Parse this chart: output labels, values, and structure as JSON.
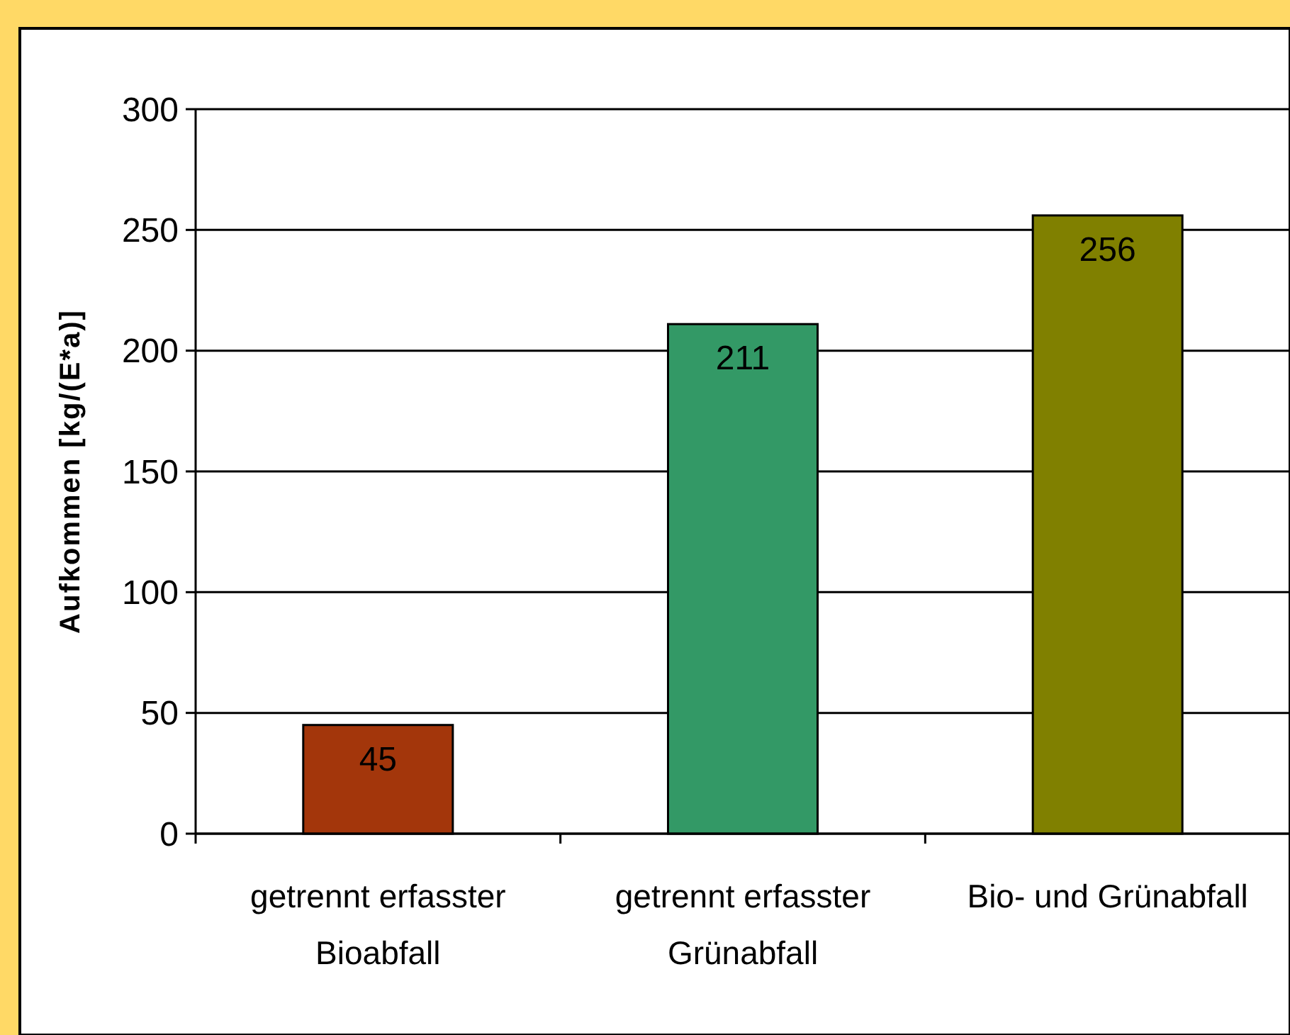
{
  "chart_data": {
    "type": "bar",
    "ylabel": "Aufkommen [kg/(E*a)]",
    "categories": [
      "getrennt erfasster Bioabfall",
      "getrennt erfasster Grünabfall",
      "Bio- und Grünabfall"
    ],
    "values": [
      45,
      211,
      256
    ],
    "colors": [
      "#a3360b",
      "#339966",
      "#808000"
    ],
    "ylim": [
      0,
      300
    ],
    "yticks": [
      0,
      50,
      100,
      150,
      200,
      250,
      300
    ],
    "grid": "y",
    "data_labels": true
  }
}
